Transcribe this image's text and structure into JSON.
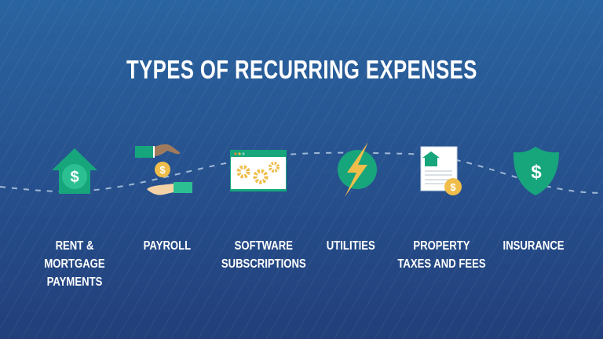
{
  "title": "TYPES OF RECURRING EXPENSES",
  "colors": {
    "background_top": "#2a64a0",
    "background_bottom": "#223f7a",
    "green": "#17a67c",
    "light_green": "#2cbf92",
    "gold": "#f0bd4b",
    "text": "#ffffff"
  },
  "items": [
    {
      "label": "RENT & MORTGAGE\nPAYMENTS",
      "icon": "house-dollar-icon"
    },
    {
      "label": "PAYROLL",
      "icon": "hands-coin-icon"
    },
    {
      "label": "SOFTWARE\nSUBSCRIPTIONS",
      "icon": "browser-gears-icon"
    },
    {
      "label": "UTILITIES",
      "icon": "lightning-icon"
    },
    {
      "label": "PROPERTY\nTAXES AND FEES",
      "icon": "document-coin-icon"
    },
    {
      "label": "INSURANCE",
      "icon": "shield-dollar-icon"
    }
  ],
  "currency_symbol": "$"
}
